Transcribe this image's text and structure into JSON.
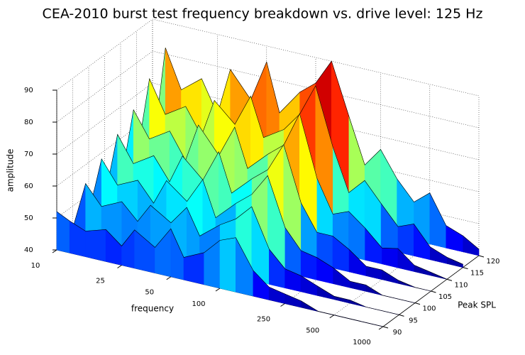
{
  "chart_data": {
    "type": "waterfall",
    "title": "CEA-2010 burst test frequency breakdown vs. drive level: 125 Hz",
    "xlabel": "frequency",
    "ylabel": "Peak SPL",
    "zlabel": "amplitude",
    "xscale": "log",
    "colormap": "jet",
    "grid": true,
    "x": [
      10,
      12,
      15,
      20,
      25,
      30,
      40,
      50,
      60,
      80,
      100,
      125,
      160,
      200,
      250,
      315,
      400,
      500,
      630,
      800,
      1000
    ],
    "y": [
      90,
      95,
      100,
      105,
      110,
      115,
      120
    ],
    "values": [
      [
        52,
        50,
        48,
        50,
        46,
        52,
        48,
        55,
        47,
        50,
        55,
        57,
        48,
        44,
        43,
        42,
        40,
        40,
        40,
        40,
        40
      ],
      [
        43,
        58,
        52,
        55,
        50,
        56,
        52,
        58,
        50,
        55,
        58,
        63,
        51,
        46,
        45,
        43,
        41,
        41,
        40,
        40,
        40
      ],
      [
        44,
        62,
        55,
        58,
        52,
        60,
        55,
        63,
        52,
        58,
        62,
        69,
        54,
        48,
        47,
        45,
        42,
        42,
        40,
        40,
        40
      ],
      [
        45,
        66,
        58,
        62,
        55,
        64,
        58,
        68,
        56,
        62,
        66,
        75,
        58,
        50,
        50,
        47,
        43,
        43,
        41,
        40,
        40
      ],
      [
        46,
        70,
        62,
        66,
        58,
        70,
        62,
        72,
        60,
        66,
        70,
        81,
        62,
        52,
        54,
        50,
        45,
        46,
        42,
        41,
        40
      ],
      [
        50,
        76,
        66,
        70,
        62,
        74,
        68,
        78,
        66,
        70,
        76,
        86,
        68,
        55,
        60,
        54,
        48,
        50,
        44,
        42,
        41
      ],
      [
        48,
        82,
        70,
        75,
        65,
        80,
        72,
        85,
        70,
        78,
        82,
        90,
        74,
        60,
        66,
        58,
        52,
        56,
        47,
        45,
        42
      ]
    ],
    "xlim": [
      10,
      1000
    ],
    "xticks": [
      10,
      25,
      50,
      100,
      250,
      500,
      1000
    ],
    "ylim": [
      90,
      120
    ],
    "yticks": [
      90,
      95,
      100,
      105,
      110,
      115,
      120
    ],
    "zlim": [
      40,
      90
    ],
    "zticks": [
      40,
      50,
      60,
      70,
      80,
      90
    ]
  }
}
